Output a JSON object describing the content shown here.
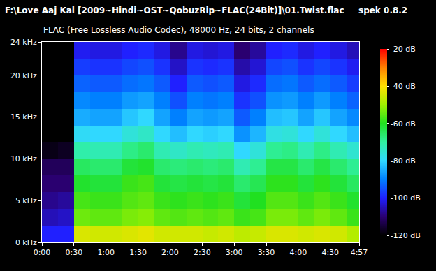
{
  "chart_data": {
    "type": "heatmap",
    "title": "F:\\Love Aaj Kal [2009~Hindi~OST~QobuzRip~FLAC(24Bit)]\\01.Twist.flac",
    "subtitle": "FLAC (Free Lossless Audio Codec), 48000 Hz, 24 bits, 2 channels",
    "annotations": [
      "spek 0.8.2"
    ],
    "x": [
      7.5,
      22.5,
      37.5,
      52.5,
      67.5,
      82.5,
      97.5,
      112.5,
      127.5,
      142.5,
      157.5,
      172.5,
      187.5,
      202.5,
      217.5,
      232.5,
      247.5,
      262.5,
      277.5,
      292.5
    ],
    "y": [
      1,
      3,
      5,
      7,
      9,
      11,
      13,
      15,
      17,
      19,
      21,
      23
    ],
    "z": [
      [
        -100,
        -100,
        -44,
        -45,
        -45,
        -44,
        -43,
        -45,
        -45,
        -45,
        -46,
        -45,
        -47,
        -46,
        -44,
        -44,
        -45,
        -44,
        -45,
        -48
      ],
      [
        -105,
        -104,
        -54,
        -55,
        -55,
        -53,
        -52,
        -55,
        -56,
        -55,
        -56,
        -55,
        -58,
        -57,
        -53,
        -53,
        -55,
        -53,
        -55,
        -58
      ],
      [
        -108,
        -107,
        -57,
        -58,
        -58,
        -56,
        -55,
        -58,
        -59,
        -58,
        -59,
        -58,
        -62,
        -60,
        -56,
        -56,
        -58,
        -56,
        -58,
        -61
      ],
      [
        -110,
        -110,
        -61,
        -62,
        -62,
        -58,
        -57,
        -62,
        -63,
        -62,
        -63,
        -62,
        -66,
        -64,
        -59,
        -59,
        -62,
        -59,
        -62,
        -65
      ],
      [
        -112,
        -112,
        -65,
        -66,
        -66,
        -62,
        -61,
        -66,
        -67,
        -66,
        -67,
        -66,
        -72,
        -69,
        -63,
        -63,
        -66,
        -63,
        -66,
        -69
      ],
      [
        -118,
        -117,
        -71,
        -72,
        -72,
        -68,
        -66,
        -72,
        -74,
        -72,
        -73,
        -72,
        -80,
        -76,
        -69,
        -68,
        -72,
        -68,
        -72,
        -75
      ],
      [
        -120,
        -120,
        -79,
        -80,
        -80,
        -76,
        -74,
        -80,
        -83,
        -80,
        -81,
        -80,
        -88,
        -84,
        -77,
        -76,
        -80,
        -76,
        -80,
        -83
      ],
      [
        -120,
        -120,
        -85,
        -86,
        -86,
        -82,
        -80,
        -86,
        -90,
        -86,
        -87,
        -86,
        -94,
        -90,
        -83,
        -82,
        -86,
        -82,
        -86,
        -89
      ],
      [
        -120,
        -120,
        -89,
        -90,
        -90,
        -87,
        -86,
        -90,
        -95,
        -90,
        -91,
        -90,
        -98,
        -95,
        -88,
        -87,
        -90,
        -87,
        -90,
        -93
      ],
      [
        -120,
        -120,
        -93,
        -94,
        -94,
        -92,
        -91,
        -94,
        -100,
        -94,
        -95,
        -94,
        -102,
        -99,
        -92,
        -91,
        -94,
        -92,
        -94,
        -97
      ],
      [
        -120,
        -120,
        -97,
        -98,
        -98,
        -96,
        -95,
        -98,
        -104,
        -98,
        -99,
        -98,
        -106,
        -103,
        -96,
        -95,
        -98,
        -96,
        -98,
        -101
      ],
      [
        -120,
        -120,
        -101,
        -102,
        -102,
        -100,
        -99,
        -102,
        -108,
        -102,
        -103,
        -102,
        -110,
        -107,
        -100,
        -99,
        -102,
        -100,
        -102,
        -105
      ]
    ],
    "xlim": [
      0,
      297
    ],
    "ylim": [
      0,
      24
    ],
    "xticks": [
      {
        "value": 0,
        "label": "0:00"
      },
      {
        "value": 30,
        "label": "0:30"
      },
      {
        "value": 60,
        "label": "1:00"
      },
      {
        "value": 90,
        "label": "1:30"
      },
      {
        "value": 120,
        "label": "2:00"
      },
      {
        "value": 150,
        "label": "2:30"
      },
      {
        "value": 180,
        "label": "3:00"
      },
      {
        "value": 210,
        "label": "3:30"
      },
      {
        "value": 240,
        "label": "4:00"
      },
      {
        "value": 270,
        "label": "4:30"
      },
      {
        "value": 297,
        "label": "4:57"
      }
    ],
    "yticks": [
      {
        "value": 0,
        "label": "0 kHz"
      },
      {
        "value": 5,
        "label": "5 kHz"
      },
      {
        "value": 10,
        "label": "10 kHz"
      },
      {
        "value": 15,
        "label": "15 kHz"
      },
      {
        "value": 20,
        "label": "20 kHz"
      },
      {
        "value": 24,
        "label": "24 kHz"
      }
    ],
    "colorbar": {
      "range": [
        -120,
        -20
      ],
      "ticks": [
        {
          "value": -20,
          "label": "-20 dB"
        },
        {
          "value": -40,
          "label": "-40 dB"
        },
        {
          "value": -60,
          "label": "-60 dB"
        },
        {
          "value": -80,
          "label": "-80 dB"
        },
        {
          "value": -100,
          "label": "-100 dB"
        },
        {
          "value": -120,
          "label": "-120 dB"
        }
      ]
    },
    "grid": false
  }
}
